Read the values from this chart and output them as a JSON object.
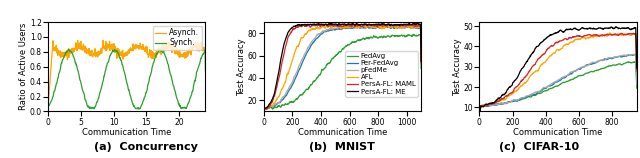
{
  "panel_a": {
    "caption": "(a)  Concurrency",
    "xlabel": "Communication Time",
    "ylabel": "Ratio of Active Users",
    "xlim": [
      0,
      24
    ],
    "ylim": [
      0.0,
      1.2
    ],
    "yticks": [
      0.0,
      0.2,
      0.4,
      0.6,
      0.8,
      1.0,
      1.2
    ],
    "xticks": [
      0,
      5,
      10,
      15,
      20
    ],
    "asynch_color": "#FFA500",
    "synch_color": "#2ca02c"
  },
  "panel_b": {
    "caption": "(b)  MNIST",
    "xlabel": "Communication Time",
    "ylabel": "Test Accuracy",
    "xlim": [
      0,
      1100
    ],
    "ylim": [
      10,
      90
    ],
    "yticks": [
      20,
      40,
      60,
      80
    ],
    "xticks": [
      0,
      200,
      400,
      600,
      800,
      1000
    ],
    "colors": {
      "FedAvg": "#2ca02c",
      "Per-FedAvg": "#1f77b4",
      "pFedMe": "#aaaaaa",
      "AFL": "#FFA500",
      "PersA-FL: MAML": "#d62728",
      "PersA-FL: ME": "#000000"
    }
  },
  "panel_c": {
    "caption": "(c)  CIFAR-10",
    "xlabel": "Communication Time",
    "ylabel": "Test Accuracy",
    "xlim": [
      0,
      950
    ],
    "ylim": [
      8,
      52
    ],
    "yticks": [
      10,
      20,
      30,
      40,
      50
    ],
    "xticks": [
      0,
      200,
      400,
      600,
      800
    ],
    "colors": {
      "FedAvg": "#2ca02c",
      "Per-FedAvg": "#1f77b4",
      "pFedMe": "#aaaaaa",
      "AFL": "#FFA500",
      "PersA-FL: MAML": "#d62728",
      "PersA-FL: ME": "#000000"
    }
  }
}
